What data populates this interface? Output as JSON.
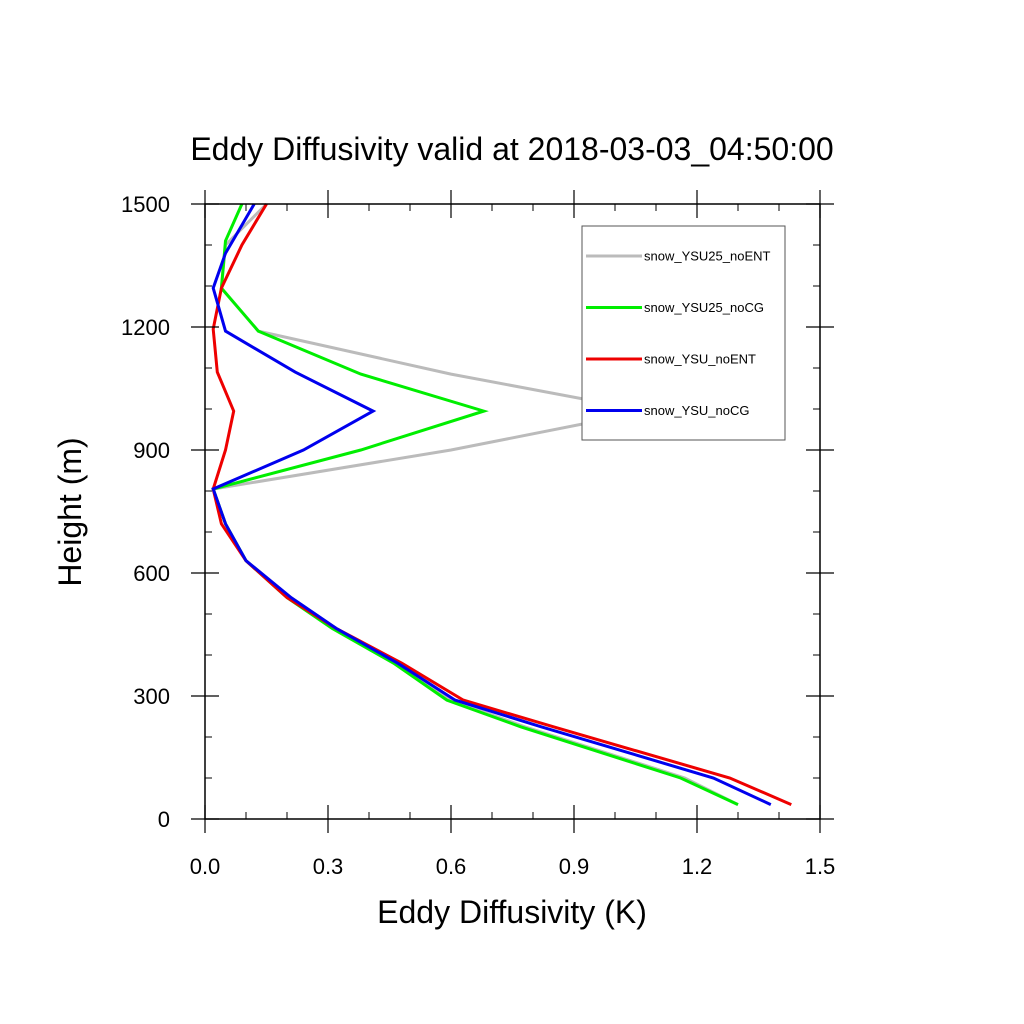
{
  "chart_data": {
    "type": "line",
    "title": "Eddy Diffusivity valid at 2018-03-03_04:50:00",
    "xlabel": "Eddy Diffusivity (K)",
    "ylabel": "Height (m)",
    "xlim": [
      0.0,
      1.5
    ],
    "ylim": [
      0,
      1500
    ],
    "xticks": [
      "0.0",
      "0.3",
      "0.6",
      "0.9",
      "1.2",
      "1.5"
    ],
    "yticks": [
      "0",
      "300",
      "600",
      "900",
      "1200",
      "1500"
    ],
    "xtick_values": [
      0.0,
      0.3,
      0.6,
      0.9,
      1.2,
      1.5
    ],
    "ytick_values": [
      0,
      300,
      600,
      900,
      1200,
      1500
    ],
    "legend_position": "top-right",
    "grid": false,
    "series": [
      {
        "name": "snow_YSU25_noENT",
        "color": "#bbbbbb",
        "points": [
          [
            1.3,
            35
          ],
          [
            1.17,
            100
          ],
          [
            0.78,
            225
          ],
          [
            0.6,
            290
          ],
          [
            0.47,
            380
          ],
          [
            0.32,
            465
          ],
          [
            0.21,
            540
          ],
          [
            0.1,
            630
          ],
          [
            0.05,
            720
          ],
          [
            0.02,
            805
          ],
          [
            0.6,
            900
          ],
          [
            1.08,
            995
          ],
          [
            0.6,
            1085
          ],
          [
            0.13,
            1190
          ],
          [
            0.04,
            1295
          ],
          [
            0.05,
            1400
          ],
          [
            0.15,
            1500
          ]
        ]
      },
      {
        "name": "snow_YSU25_noCG",
        "color": "#00ee00",
        "points": [
          [
            1.3,
            35
          ],
          [
            1.16,
            100
          ],
          [
            0.77,
            225
          ],
          [
            0.59,
            290
          ],
          [
            0.46,
            380
          ],
          [
            0.31,
            465
          ],
          [
            0.2,
            540
          ],
          [
            0.1,
            630
          ],
          [
            0.05,
            720
          ],
          [
            0.02,
            805
          ],
          [
            0.38,
            900
          ],
          [
            0.68,
            995
          ],
          [
            0.38,
            1085
          ],
          [
            0.13,
            1190
          ],
          [
            0.04,
            1295
          ],
          [
            0.05,
            1410
          ],
          [
            0.09,
            1500
          ]
        ]
      },
      {
        "name": "snow_YSU_noENT",
        "color": "#ee0000",
        "points": [
          [
            1.43,
            35
          ],
          [
            1.28,
            100
          ],
          [
            0.85,
            225
          ],
          [
            0.63,
            290
          ],
          [
            0.48,
            380
          ],
          [
            0.32,
            465
          ],
          [
            0.2,
            540
          ],
          [
            0.1,
            630
          ],
          [
            0.04,
            720
          ],
          [
            0.02,
            805
          ],
          [
            0.05,
            900
          ],
          [
            0.07,
            995
          ],
          [
            0.03,
            1090
          ],
          [
            0.02,
            1195
          ],
          [
            0.04,
            1295
          ],
          [
            0.09,
            1400
          ],
          [
            0.15,
            1500
          ]
        ]
      },
      {
        "name": "snow_YSU_noCG",
        "color": "#0000ee",
        "points": [
          [
            1.38,
            35
          ],
          [
            1.24,
            100
          ],
          [
            0.82,
            225
          ],
          [
            0.61,
            290
          ],
          [
            0.47,
            380
          ],
          [
            0.32,
            465
          ],
          [
            0.21,
            540
          ],
          [
            0.1,
            630
          ],
          [
            0.05,
            720
          ],
          [
            0.02,
            805
          ],
          [
            0.24,
            900
          ],
          [
            0.41,
            995
          ],
          [
            0.22,
            1090
          ],
          [
            0.05,
            1190
          ],
          [
            0.02,
            1295
          ],
          [
            0.05,
            1380
          ],
          [
            0.12,
            1500
          ]
        ]
      }
    ]
  }
}
